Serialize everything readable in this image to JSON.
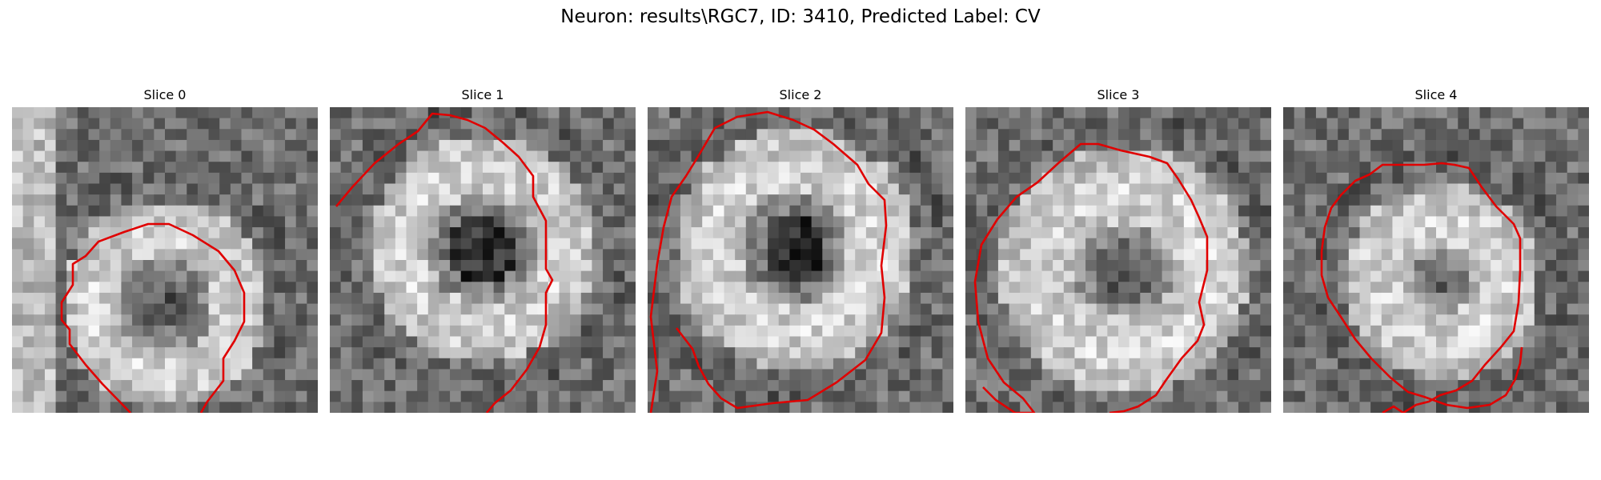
{
  "figure": {
    "title": "Neuron: results\\RGC7, ID: 3410, Predicted Label: CV"
  },
  "panels": [
    {
      "title": "Slice 0",
      "seed": 11,
      "dark_center": 0.25
    },
    {
      "title": "Slice 1",
      "seed": 23,
      "dark_center": 0.9
    },
    {
      "title": "Slice 2",
      "seed": 37,
      "dark_center": 1.0
    },
    {
      "title": "Slice 3",
      "seed": 41,
      "dark_center": 0.45
    },
    {
      "title": "Slice 4",
      "seed": 53,
      "dark_center": 0.1
    }
  ],
  "colors": {
    "contour": "#e00000",
    "background": "#ffffff"
  }
}
